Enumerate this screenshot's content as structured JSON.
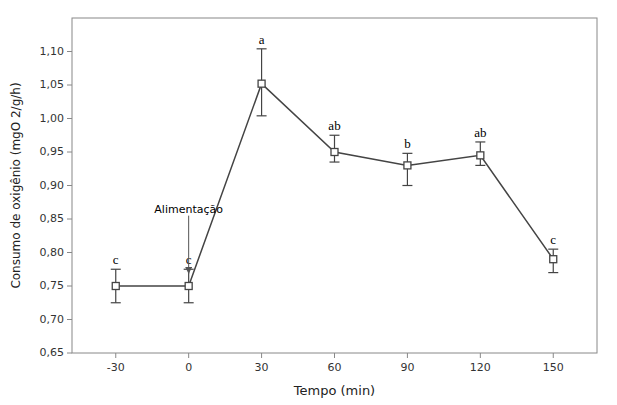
{
  "chart_data": {
    "type": "line",
    "x": [
      -30,
      0,
      30,
      60,
      90,
      120,
      150
    ],
    "values": [
      0.75,
      0.75,
      1.052,
      0.95,
      0.93,
      0.945,
      0.79
    ],
    "error_upper": [
      0.025,
      0.025,
      0.052,
      0.025,
      0.018,
      0.02,
      0.015
    ],
    "error_lower": [
      0.025,
      0.025,
      0.048,
      0.015,
      0.03,
      0.015,
      0.02
    ],
    "labels": [
      "c",
      "c",
      "a",
      "ab",
      "b",
      "ab",
      "c"
    ],
    "xlabel": "Tempo (min)",
    "ylabel": "Consumo de oxigênio (mgO 2/g/h)",
    "xlim": [
      -48,
      168
    ],
    "xticks": [
      -30,
      0,
      30,
      60,
      90,
      120,
      150
    ],
    "ylim": [
      0.65,
      1.15
    ],
    "yticks": [
      {
        "value": 0.65,
        "label": "0,65"
      },
      {
        "value": 0.7,
        "label": "0,70"
      },
      {
        "value": 0.75,
        "label": "0,75"
      },
      {
        "value": 0.8,
        "label": "0,80"
      },
      {
        "value": 0.85,
        "label": "0,85"
      },
      {
        "value": 0.9,
        "label": "0,90"
      },
      {
        "value": 0.95,
        "label": "0,95"
      },
      {
        "value": 1.0,
        "label": "1,00"
      },
      {
        "value": 1.05,
        "label": "1,05"
      },
      {
        "value": 1.1,
        "label": "1,10"
      }
    ],
    "annotations": [
      {
        "text": "Alimentação",
        "x": 0,
        "y": 0.855,
        "arrow_y": 0.768
      }
    ],
    "color": "#444444",
    "marker": "square",
    "line_style": "solid",
    "grid": false
  }
}
